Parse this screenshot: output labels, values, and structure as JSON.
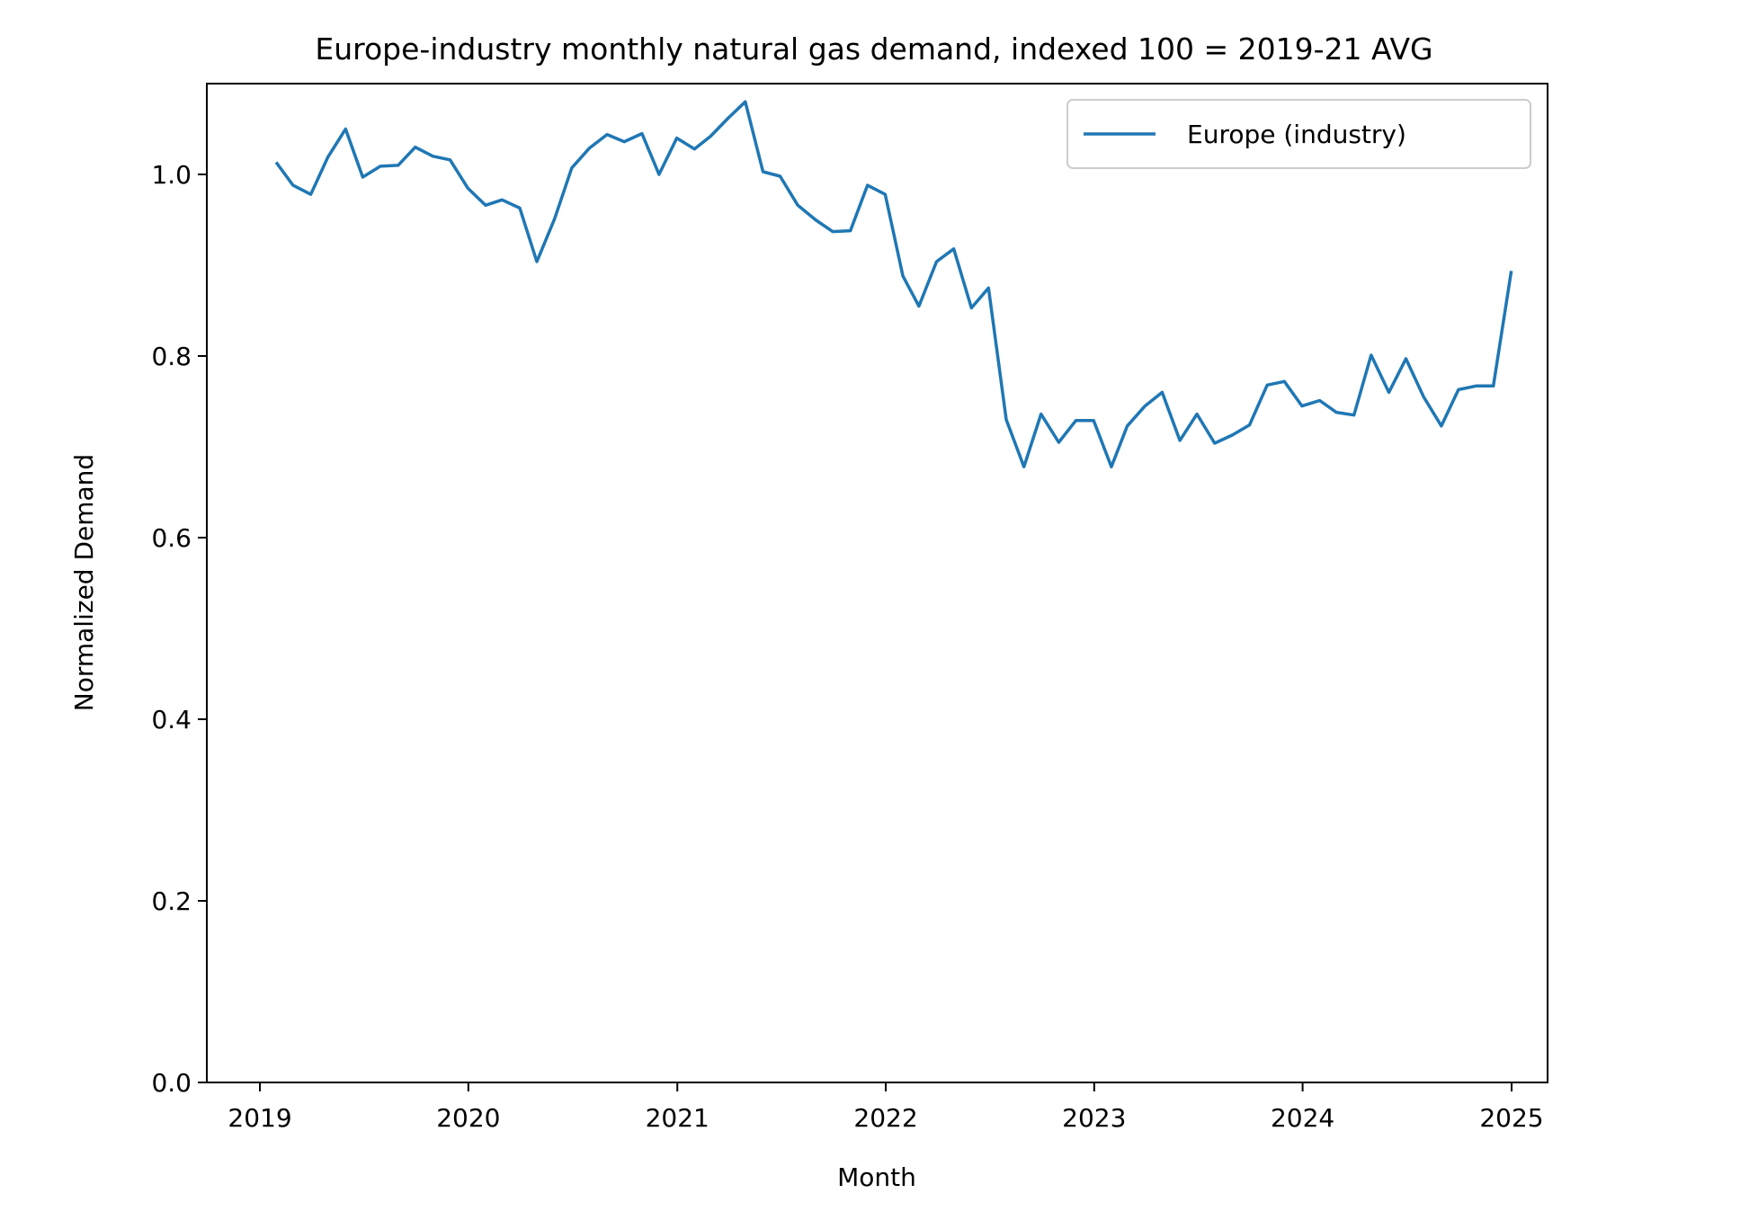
{
  "chart_data": {
    "type": "line",
    "title": "Europe-industry monthly natural gas demand, indexed 100 = 2019-21 AVG",
    "xlabel": "Month",
    "ylabel": "Normalized Demand",
    "ylim": [
      0.0,
      1.1
    ],
    "xlim": [
      "2018-09-30",
      "2025-03-05"
    ],
    "x_ticks": [
      "2019",
      "2020",
      "2021",
      "2022",
      "2023",
      "2024",
      "2025"
    ],
    "y_ticks": [
      "0.0",
      "0.2",
      "0.4",
      "0.6",
      "0.8",
      "1.0"
    ],
    "grid": false,
    "legend_position": "upper right",
    "x": [
      "2019-01",
      "2019-02",
      "2019-03",
      "2019-04",
      "2019-05",
      "2019-06",
      "2019-07",
      "2019-08",
      "2019-09",
      "2019-10",
      "2019-11",
      "2019-12",
      "2020-01",
      "2020-02",
      "2020-03",
      "2020-04",
      "2020-05",
      "2020-06",
      "2020-07",
      "2020-08",
      "2020-09",
      "2020-10",
      "2020-11",
      "2020-12",
      "2021-01",
      "2021-02",
      "2021-03",
      "2021-04",
      "2021-05",
      "2021-06",
      "2021-07",
      "2021-08",
      "2021-09",
      "2021-10",
      "2021-11",
      "2021-12",
      "2022-01",
      "2022-02",
      "2022-03",
      "2022-04",
      "2022-05",
      "2022-06",
      "2022-07",
      "2022-08",
      "2022-09",
      "2022-10",
      "2022-11",
      "2022-12",
      "2023-01",
      "2023-02",
      "2023-03",
      "2023-04",
      "2023-05",
      "2023-06",
      "2023-07",
      "2023-08",
      "2023-09",
      "2023-10",
      "2023-11",
      "2023-12",
      "2024-01",
      "2024-02",
      "2024-03",
      "2024-04",
      "2024-05",
      "2024-06",
      "2024-07",
      "2024-08",
      "2024-09",
      "2024-10",
      "2024-11",
      "2024-12"
    ],
    "series": [
      {
        "name": "Europe (industry)",
        "color": "#1f77b4",
        "values": [
          1.012,
          0.988,
          0.978,
          1.019,
          1.05,
          0.997,
          1.009,
          1.01,
          1.03,
          1.02,
          1.016,
          0.985,
          0.966,
          0.972,
          0.963,
          0.904,
          0.951,
          1.007,
          1.029,
          1.044,
          1.036,
          1.045,
          1.0,
          1.04,
          1.028,
          1.042,
          1.062,
          1.08,
          1.003,
          0.998,
          0.966,
          0.95,
          0.937,
          0.938,
          0.988,
          0.978,
          0.888,
          0.855,
          0.904,
          0.918,
          0.853,
          0.875,
          0.73,
          0.678,
          0.736,
          0.705,
          0.729,
          0.729,
          0.678,
          0.723,
          0.745,
          0.76,
          0.707,
          0.736,
          0.704,
          0.713,
          0.724,
          0.768,
          0.772,
          0.745,
          0.751,
          0.738,
          0.735,
          0.801,
          0.76,
          0.797,
          0.755,
          0.723,
          0.763,
          0.767,
          0.767,
          0.892
        ]
      }
    ]
  }
}
